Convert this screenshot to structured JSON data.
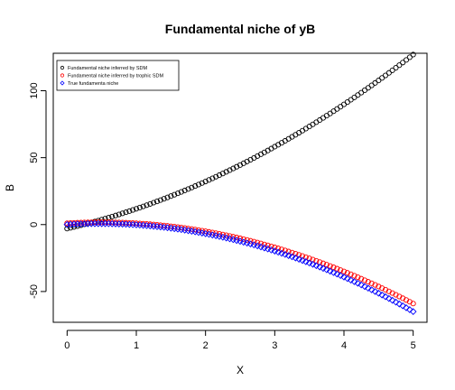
{
  "chart_data": {
    "type": "scatter",
    "title": "Fundamental niche of yB",
    "xlabel": "X",
    "ylabel": "B",
    "xlim": [
      -0.2,
      5.2
    ],
    "ylim": [
      -73,
      128
    ],
    "x_ticks": [
      0,
      1,
      2,
      3,
      4,
      5
    ],
    "y_ticks": [
      -50,
      0,
      50,
      100
    ],
    "x_tick_labels": [
      "0",
      "1",
      "2",
      "3",
      "4",
      "5"
    ],
    "y_tick_labels": [
      "-50",
      "0",
      "50",
      "100"
    ],
    "grid": false,
    "legend_position": "top-left",
    "x": {
      "start": 0,
      "end": 5,
      "count": 101
    },
    "series": [
      {
        "name": "Fundamental niche inferred by SDM",
        "color": "#000000",
        "marker": "circle",
        "model": "quadratic",
        "coef": [
          -3,
          12,
          2.8
        ]
      },
      {
        "name": "Fundamental niche inferred by trophic SDM",
        "color": "#ff0000",
        "marker": "circle",
        "model": "quadratic",
        "coef": [
          1,
          3,
          -3
        ]
      },
      {
        "name": "True fundamenta niche",
        "color": "#0000ff",
        "marker": "diamond",
        "model": "quadratic",
        "coef": [
          0,
          3,
          -3.2
        ]
      }
    ]
  }
}
